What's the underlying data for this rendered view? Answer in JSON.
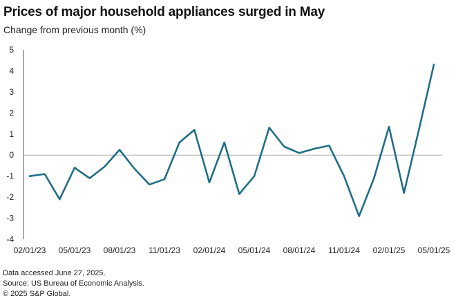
{
  "chart_data": {
    "type": "line",
    "title": "Prices of major household appliances surged in May",
    "subtitle": "Change from previous month (%)",
    "xlabel": "",
    "ylabel": "",
    "ylim": [
      -4,
      5
    ],
    "yticks": [
      5,
      4,
      3,
      2,
      1,
      0,
      -1,
      -2,
      -3,
      -4
    ],
    "xtick_labels": [
      "02/01/23",
      "05/01/23",
      "08/01/23",
      "11/01/23",
      "02/01/24",
      "05/01/24",
      "08/01/24",
      "11/01/24",
      "02/01/25",
      "05/01/25"
    ],
    "series": [
      {
        "name": "Major household appliances",
        "color": "#1f6e86",
        "x": [
          "02/01/23",
          "03/01/23",
          "04/01/23",
          "05/01/23",
          "06/01/23",
          "07/01/23",
          "08/01/23",
          "09/01/23",
          "10/01/23",
          "11/01/23",
          "12/01/23",
          "01/01/24",
          "02/01/24",
          "03/01/24",
          "04/01/24",
          "05/01/24",
          "06/01/24",
          "07/01/24",
          "08/01/24",
          "09/01/24",
          "10/01/24",
          "11/01/24",
          "12/01/24",
          "01/01/25",
          "02/01/25",
          "03/01/25",
          "04/01/25",
          "05/01/25"
        ],
        "values": [
          -1.0,
          -0.9,
          -2.1,
          -0.6,
          -1.1,
          -0.55,
          0.25,
          -0.65,
          -1.4,
          -1.15,
          0.6,
          1.2,
          -1.3,
          0.6,
          -1.85,
          -1.0,
          1.3,
          0.4,
          0.1,
          0.3,
          0.45,
          -1.0,
          -2.9,
          -1.1,
          1.35,
          -1.8,
          1.2,
          4.3
        ]
      }
    ]
  },
  "footer": {
    "line1": "Data accessed June 27, 2025.",
    "line2": "Source: US Bureau of Economic Analysis.",
    "line3": "© 2025 S&P Global."
  }
}
